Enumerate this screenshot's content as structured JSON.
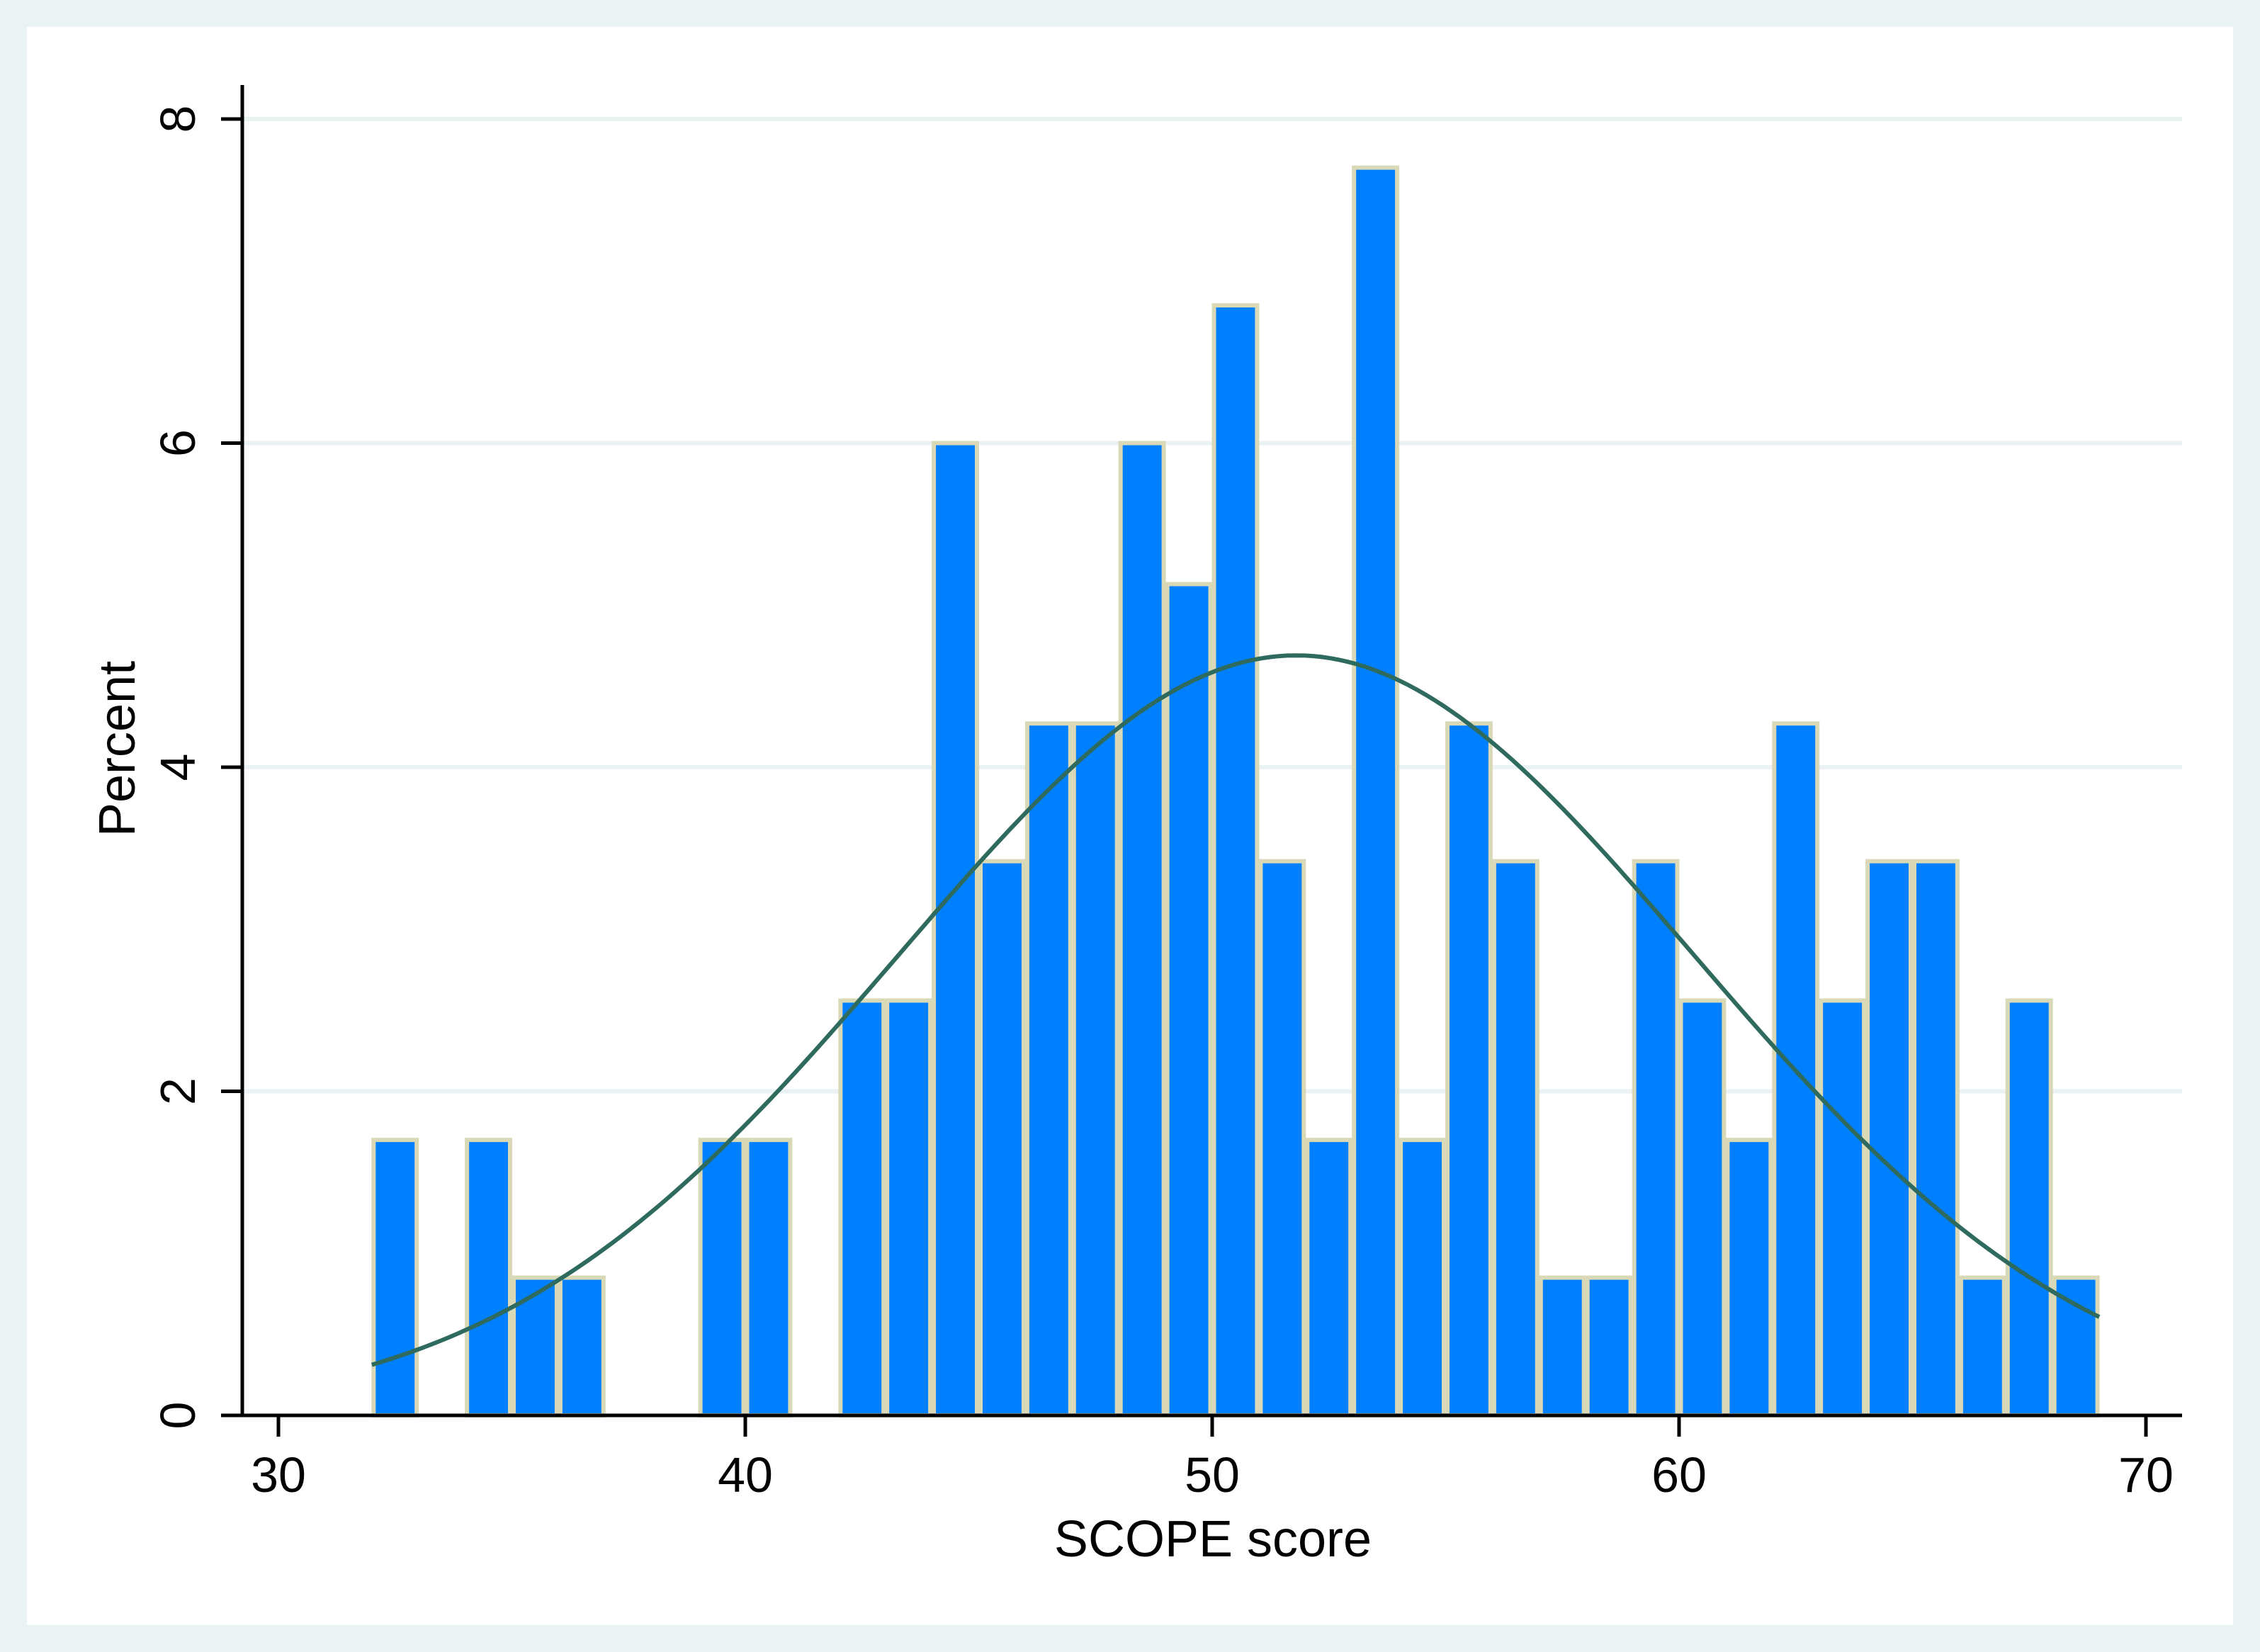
{
  "chart_data": {
    "type": "bar",
    "xlabel": "SCOPE score",
    "ylabel": "Percent",
    "xlim": [
      29,
      70.5
    ],
    "ylim": [
      0,
      8
    ],
    "xticks": [
      30,
      40,
      50,
      60,
      70
    ],
    "yticks": [
      0,
      2,
      4,
      6,
      8
    ],
    "grid": true,
    "bin_width": 1,
    "bins": [
      {
        "center": 32.5,
        "value": 1.7
      },
      {
        "center": 34.5,
        "value": 1.7
      },
      {
        "center": 35.5,
        "value": 0.85
      },
      {
        "center": 36.5,
        "value": 0.85
      },
      {
        "center": 39.5,
        "value": 1.7
      },
      {
        "center": 40.5,
        "value": 1.7
      },
      {
        "center": 42.5,
        "value": 2.56
      },
      {
        "center": 43.5,
        "value": 2.56
      },
      {
        "center": 44.5,
        "value": 6.0
      },
      {
        "center": 45.5,
        "value": 3.42
      },
      {
        "center": 46.5,
        "value": 4.27
      },
      {
        "center": 47.5,
        "value": 4.27
      },
      {
        "center": 48.5,
        "value": 6.0
      },
      {
        "center": 49.5,
        "value": 5.13
      },
      {
        "center": 50.5,
        "value": 6.85
      },
      {
        "center": 51.5,
        "value": 3.42
      },
      {
        "center": 52.5,
        "value": 1.7
      },
      {
        "center": 53.5,
        "value": 7.7
      },
      {
        "center": 54.5,
        "value": 1.7
      },
      {
        "center": 55.5,
        "value": 4.27
      },
      {
        "center": 56.5,
        "value": 3.42
      },
      {
        "center": 57.5,
        "value": 0.85
      },
      {
        "center": 58.5,
        "value": 0.85
      },
      {
        "center": 59.5,
        "value": 3.42
      },
      {
        "center": 60.5,
        "value": 2.56
      },
      {
        "center": 61.5,
        "value": 1.7
      },
      {
        "center": 62.5,
        "value": 4.27
      },
      {
        "center": 63.5,
        "value": 2.56
      },
      {
        "center": 64.5,
        "value": 3.42
      },
      {
        "center": 65.5,
        "value": 3.42
      },
      {
        "center": 66.5,
        "value": 0.85
      },
      {
        "center": 67.5,
        "value": 2.56
      },
      {
        "center": 68.5,
        "value": 0.85
      }
    ],
    "normal_curve": {
      "mean": 51.8,
      "peak_percent": 4.69,
      "x_range": [
        32,
        69
      ]
    },
    "colors": {
      "outer_background": "#EAF2F3",
      "plot_background": "#FFFFFF",
      "bar_fill": "#0080FF",
      "bar_edge": "#D9D9B8",
      "curve": "#2E6B5E",
      "grid": "#EAF2F3",
      "axis": "#000000"
    }
  }
}
